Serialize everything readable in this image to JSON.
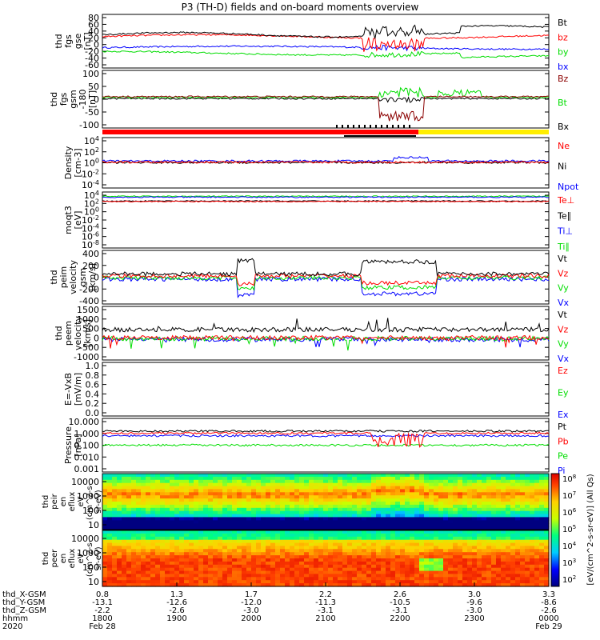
{
  "title": "P3 (TH-D) fields and on-board moments overview",
  "colors": {
    "black": "#000000",
    "red": "#ff0000",
    "green": "#00dd00",
    "blue": "#0000ff",
    "yellow": "#ffee00"
  },
  "chart_data": [
    {
      "type": "line",
      "id": "fgs_gse",
      "ylabel": [
        "thd",
        "fgs",
        "gse",
        "[nT]"
      ],
      "yticks": [
        "80",
        "60",
        "40",
        "20",
        "0",
        "-20",
        "-40",
        "-60"
      ],
      "ylim": [
        -60,
        85
      ],
      "series": [
        {
          "name": "Bt",
          "color": "#000000"
        },
        {
          "name": "bz",
          "color": "#ff0000"
        },
        {
          "name": "by",
          "color": "#00dd00"
        },
        {
          "name": "bx",
          "color": "#0000ff"
        }
      ]
    },
    {
      "type": "line",
      "id": "fgs_gsm_angles",
      "ylabel": [
        "thd",
        "fgs",
        "gsm",
        "-180",
        "[nT]"
      ],
      "yticks": [
        "100",
        "50",
        "0",
        "-50",
        "-100"
      ],
      "ylim": [
        -125,
        110
      ],
      "series": [
        {
          "name": "Bz",
          "color": "#8b0000"
        },
        {
          "name": "Bt",
          "color": "#00dd00"
        },
        {
          "name": "Bx",
          "color": "#000000"
        }
      ]
    },
    {
      "type": "line",
      "id": "density",
      "ylabel": [
        "Density",
        "[cm-3]"
      ],
      "yscale": "log",
      "yticks": [
        "10^4",
        "10^2",
        "10^0",
        "10^-2",
        "10^-4"
      ],
      "ylim": [
        -4.3,
        4.3
      ],
      "series": [
        {
          "name": "Ne",
          "color": "#ff0000"
        },
        {
          "name": "Ni",
          "color": "#000000"
        },
        {
          "name": "Npot",
          "color": "#0000ff"
        }
      ]
    },
    {
      "type": "line",
      "id": "temperature",
      "ylabel": [
        "moqt3",
        "[eV]"
      ],
      "yscale": "log",
      "yticks": [
        "10^4",
        "10^2",
        "10^0",
        "10^-2",
        "10^-4",
        "10^-6",
        "10^-8"
      ],
      "ylim": [
        -8.5,
        4.5
      ],
      "series": [
        {
          "name": "Te⊥",
          "color": "#ff0000"
        },
        {
          "name": "Te∥",
          "color": "#000000"
        },
        {
          "name": "Ti⊥",
          "color": "#0000ff"
        },
        {
          "name": "Ti∥",
          "color": "#00dd00"
        }
      ]
    },
    {
      "type": "line",
      "id": "peim_velocity",
      "ylabel": [
        "thd",
        "peim",
        "velocity",
        "gsm",
        "[km/s]"
      ],
      "yticks": [
        "400",
        "200",
        "0",
        "-200",
        "-400"
      ],
      "ylim": [
        -400,
        400
      ],
      "series": [
        {
          "name": "Vt",
          "color": "#000000"
        },
        {
          "name": "Vz",
          "color": "#ff0000"
        },
        {
          "name": "Vy",
          "color": "#00dd00"
        },
        {
          "name": "Vx",
          "color": "#0000ff"
        }
      ]
    },
    {
      "type": "line",
      "id": "peem_velocity",
      "ylabel": [
        "thd",
        "peem",
        "velocity",
        "[km/s]"
      ],
      "yticks": [
        "1500",
        "1000",
        "500",
        "0",
        "-500",
        "-1000"
      ],
      "ylim": [
        -1400,
        1600
      ],
      "series": [
        {
          "name": "Vt",
          "color": "#000000"
        },
        {
          "name": "Vz",
          "color": "#ff0000"
        },
        {
          "name": "Vy",
          "color": "#00dd00"
        },
        {
          "name": "Vx",
          "color": "#0000ff"
        }
      ]
    },
    {
      "type": "line",
      "id": "efield",
      "ylabel": [
        "E=-VxB",
        "[mV/m]"
      ],
      "yticks": [
        "1.0",
        "0.8",
        "0.6",
        "0.4",
        "0.2",
        "0.0"
      ],
      "ylim": [
        0,
        1.0
      ],
      "series": [
        {
          "name": "Ez",
          "color": "#ff0000"
        },
        {
          "name": "Ey",
          "color": "#00dd00"
        },
        {
          "name": "Ex",
          "color": "#0000ff"
        }
      ]
    },
    {
      "type": "line",
      "id": "pressure",
      "ylabel": [
        "Pressure",
        "[nPa]"
      ],
      "yscale": "log",
      "yticks": [
        "10.000",
        "1.000",
        "0.100",
        "0.010",
        "0.001"
      ],
      "ylim": [
        -3,
        1
      ],
      "series": [
        {
          "name": "Pt",
          "color": "#000000"
        },
        {
          "name": "Pb",
          "color": "#ff0000"
        },
        {
          "name": "Pe",
          "color": "#00dd00"
        },
        {
          "name": "Pi",
          "color": "#0000ff"
        }
      ]
    },
    {
      "type": "heatmap",
      "id": "peir_eflux",
      "ylabel": [
        "thd",
        "peir",
        "en",
        "eflux",
        "eV",
        "(cm^2-s-",
        "sr-eV)"
      ],
      "yscale": "log",
      "yticks": [
        "10000",
        "1000",
        "100",
        "10"
      ],
      "ylim": [
        1,
        4.3
      ]
    },
    {
      "type": "heatmap",
      "id": "peer_eflux",
      "ylabel": [
        "thd",
        "peer",
        "en",
        "eflux",
        "eV",
        "(cm^2-s-",
        "sr-eV)"
      ],
      "yscale": "log",
      "yticks": [
        "10000",
        "1000",
        "100",
        "10"
      ],
      "ylim": [
        0.9,
        4.3
      ]
    }
  ],
  "colorbar": {
    "ticks": [
      "10^8",
      "10^7",
      "10^6",
      "10^5",
      "10^4",
      "10^3",
      "10^2"
    ],
    "label": "[eV/(cm^2-s-sr-eV)] (All Qs)"
  },
  "xaxis": {
    "row_labels": [
      "thd_X-GSM",
      "thd_Y-GSM",
      "thd_Z-GSM",
      "hhmm",
      "2020"
    ],
    "columns": [
      {
        "vals": [
          "0.8",
          "-13.1",
          "-2.2",
          "1800",
          "Feb 28"
        ]
      },
      {
        "vals": [
          "1.3",
          "-12.6",
          "-2.6",
          "1900",
          ""
        ]
      },
      {
        "vals": [
          "1.7",
          "-12.0",
          "-3.0",
          "2000",
          ""
        ]
      },
      {
        "vals": [
          "2.2",
          "-11.3",
          "-3.1",
          "2100",
          ""
        ]
      },
      {
        "vals": [
          "2.6",
          "-10.5",
          "-3.1",
          "2200",
          ""
        ]
      },
      {
        "vals": [
          "3.0",
          "-9.6",
          "-3.0",
          "2300",
          ""
        ]
      },
      {
        "vals": [
          "3.3",
          "-8.6",
          "-2.6",
          "0000",
          "Feb 29"
        ]
      }
    ]
  }
}
